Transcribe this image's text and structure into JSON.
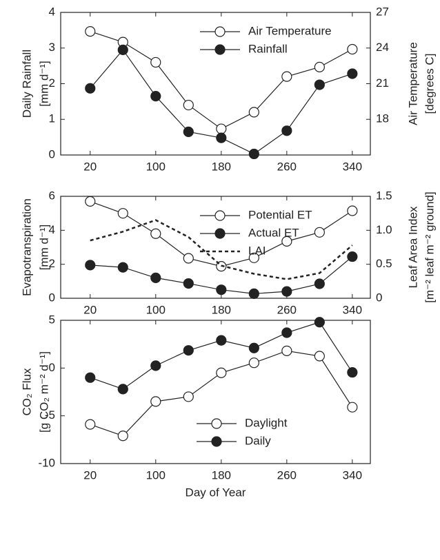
{
  "chart_data": [
    {
      "type": "line",
      "ylabel": [
        "Daily Rainfall",
        "[mm d⁻¹]"
      ],
      "y2label": [
        "Air Temperature",
        "[degrees C]"
      ],
      "x": [
        20,
        60,
        100,
        140,
        180,
        220,
        260,
        300,
        340
      ],
      "xlim": [
        -16,
        362
      ],
      "xticks": [
        20,
        100,
        180,
        260,
        340
      ],
      "ylim": [
        0,
        4
      ],
      "yticks": [
        0,
        1,
        2,
        3,
        4
      ],
      "y2lim": [
        15,
        27
      ],
      "y2ticks": [
        18,
        21,
        24,
        27
      ],
      "legend": "upper right",
      "series": [
        {
          "name": "Air Temperature",
          "color": "#222222",
          "marker": "open",
          "axis": "y2",
          "values": [
            25.4,
            24.5,
            22.8,
            19.2,
            17.2,
            18.6,
            21.6,
            22.4,
            23.9
          ]
        },
        {
          "name": "Rainfall",
          "color": "#222222",
          "marker": "filled",
          "values": [
            1.87,
            2.95,
            1.65,
            0.65,
            0.48,
            0.03,
            0.68,
            1.97,
            2.28
          ]
        }
      ]
    },
    {
      "type": "line",
      "ylabel": [
        "Evapotranspiration",
        "[mm d⁻¹]"
      ],
      "y2label": [
        "Leaf Area Index",
        "[m⁻² leaf m⁻² ground]"
      ],
      "x": [
        20,
        60,
        100,
        140,
        180,
        220,
        260,
        300,
        340
      ],
      "xlim": [
        -16,
        362
      ],
      "xticks": [
        20,
        100,
        180,
        260,
        340
      ],
      "ylim": [
        0,
        6
      ],
      "yticks": [
        0,
        2,
        4,
        6
      ],
      "y2lim": [
        0,
        1.5
      ],
      "y2ticks": [
        0,
        0.5,
        {
          "value": 1,
          "label": "1.0"
        },
        1.5
      ],
      "legend": "upper right",
      "series": [
        {
          "name": "Potential ET",
          "color": "#222222",
          "marker": "open",
          "values": [
            5.7,
            5.0,
            3.8,
            2.35,
            1.88,
            2.38,
            3.35,
            3.88,
            5.15
          ]
        },
        {
          "name": "Actual ET",
          "color": "#222222",
          "marker": "filled",
          "values": [
            1.95,
            1.82,
            1.2,
            0.87,
            0.5,
            0.27,
            0.4,
            0.85,
            2.45
          ]
        },
        {
          "name": "LAI",
          "color": "#222222",
          "marker": "none",
          "linestyle": "dashed",
          "axis": "y2",
          "values": [
            0.85,
            0.98,
            1.15,
            0.9,
            0.48,
            0.36,
            0.28,
            0.37,
            0.78
          ]
        }
      ]
    },
    {
      "type": "line",
      "ylabel": [
        "CO₂ Flux",
        "[g CO₂ m⁻² d⁻¹]"
      ],
      "xlabel": "Day of Year",
      "x": [
        20,
        60,
        100,
        140,
        180,
        220,
        260,
        300,
        340
      ],
      "xlim": [
        -16,
        362
      ],
      "xticks": [
        20,
        100,
        180,
        260,
        340
      ],
      "ylim": [
        -10,
        5
      ],
      "yticks": [
        -10,
        -5,
        0,
        5
      ],
      "legend": "lower center",
      "series": [
        {
          "name": "Daylight",
          "color": "#222222",
          "marker": "open",
          "values": [
            -5.9,
            -7.1,
            -3.5,
            -3.0,
            -0.5,
            0.55,
            1.8,
            1.25,
            -4.1
          ]
        },
        {
          "name": "Daily",
          "color": "#222222",
          "marker": "filled",
          "values": [
            -1.0,
            -2.2,
            0.25,
            1.85,
            2.9,
            2.1,
            3.7,
            4.8,
            -0.45
          ]
        }
      ]
    }
  ]
}
